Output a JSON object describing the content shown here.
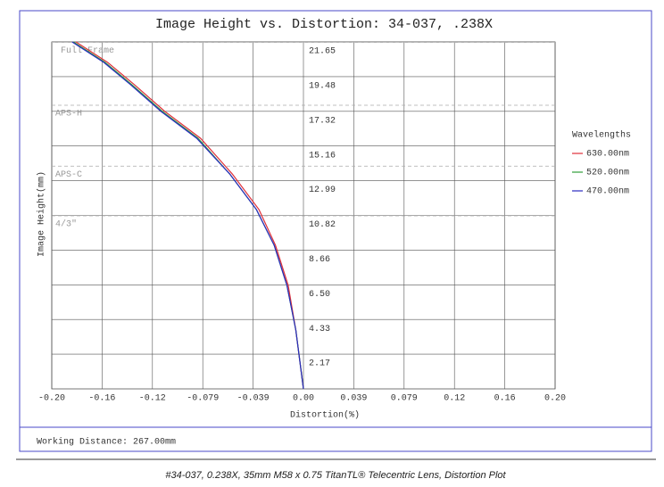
{
  "chart_data": {
    "type": "line",
    "title": "Image Height vs. Distortion: 34-037, .238X",
    "x_label": "Distortion(%)",
    "y_label": "Image Height(mm)",
    "xlim": [
      -0.198,
      0.198
    ],
    "xticks": [
      {
        "value": -0.198,
        "label": "-0.20"
      },
      {
        "value": -0.1584,
        "label": "-0.16"
      },
      {
        "value": -0.1188,
        "label": "-0.12"
      },
      {
        "value": -0.0792,
        "label": "-0.079"
      },
      {
        "value": -0.0396,
        "label": "-0.039"
      },
      {
        "value": 0,
        "label": "0.00"
      },
      {
        "value": 0.0396,
        "label": "0.039"
      },
      {
        "value": 0.0792,
        "label": "0.079"
      },
      {
        "value": 0.1188,
        "label": "0.12"
      },
      {
        "value": 0.1584,
        "label": "0.16"
      },
      {
        "value": 0.198,
        "label": "0.20"
      }
    ],
    "ylim": [
      0,
      21.65
    ],
    "yticks": [
      {
        "value": 2.165,
        "label": "2.17"
      },
      4.33,
      {
        "value": 6.495,
        "label": "6.50"
      },
      8.66,
      {
        "value": 10.825,
        "label": "10.82"
      },
      12.99,
      {
        "value": 15.155,
        "label": "15.16"
      },
      17.32,
      {
        "value": 19.485,
        "label": "19.48"
      },
      21.65
    ],
    "grid": true,
    "legend_title": "Wavelengths",
    "series": [
      {
        "name": "630.00nm",
        "color": "#e0303a",
        "x": [
          0,
          -0.006,
          -0.012,
          -0.022,
          -0.035,
          -0.056,
          -0.081,
          -0.109,
          -0.133,
          -0.154,
          -0.179
        ],
        "values": [
          0,
          3.67,
          6.46,
          8.96,
          11.19,
          13.41,
          15.64,
          17.31,
          18.98,
          20.37,
          21.65
        ]
      },
      {
        "name": "520.00nm",
        "color": "#2e9e3a",
        "x": [
          0,
          -0.006,
          -0.013,
          -0.023,
          -0.037,
          -0.058,
          -0.083,
          -0.111,
          -0.135,
          -0.156,
          -0.181
        ],
        "values": [
          0,
          3.67,
          6.46,
          8.96,
          11.19,
          13.41,
          15.64,
          17.31,
          18.98,
          20.37,
          21.65
        ]
      },
      {
        "name": "470.00nm",
        "color": "#2a2ac0",
        "x": [
          0,
          -0.006,
          -0.013,
          -0.023,
          -0.037,
          -0.058,
          -0.084,
          -0.112,
          -0.136,
          -0.157,
          -0.182
        ],
        "values": [
          0,
          3.67,
          6.46,
          8.96,
          11.19,
          13.41,
          15.64,
          17.31,
          18.98,
          20.37,
          21.65
        ]
      }
    ],
    "annotations": [
      {
        "text": "Full Frame",
        "y": 21.63
      },
      {
        "text": "APS-H",
        "y": 17.7
      },
      {
        "text": "APS-C",
        "y": 13.9
      },
      {
        "text": "4/3\"",
        "y": 10.8
      }
    ],
    "footnote": "Working Distance: 267.00mm"
  },
  "caption": "#34-037, 0.238X, 35mm M58 x 0.75 TitanTL® Telecentric Lens, Distortion Plot"
}
